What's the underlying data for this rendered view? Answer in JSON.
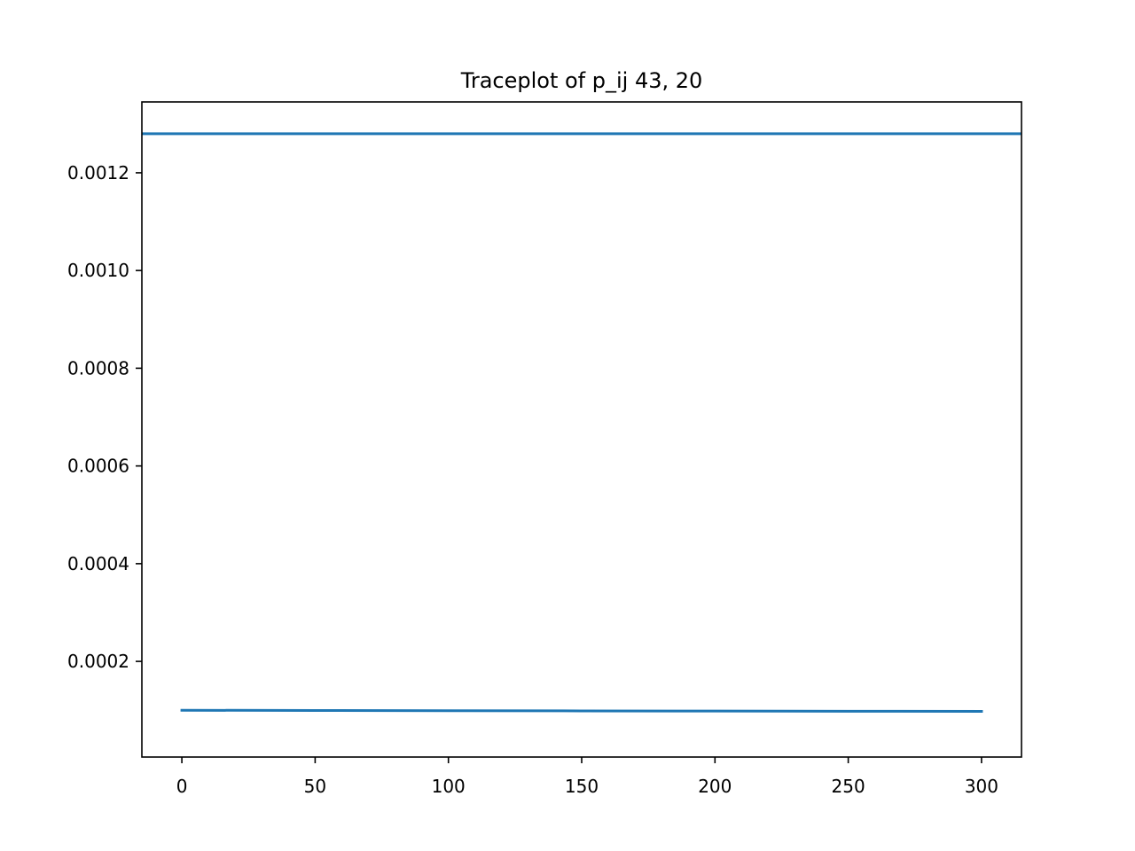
{
  "chart_data": {
    "type": "line",
    "title": "Traceplot of p_ij 43, 20",
    "xlabel": "",
    "ylabel": "",
    "xlim": [
      -15,
      315
    ],
    "ylim": [
      4.25e-06,
      0.001345
    ],
    "x_ticks": [
      0,
      50,
      100,
      150,
      200,
      250,
      300
    ],
    "x_tick_labels": [
      "0",
      "50",
      "100",
      "150",
      "200",
      "250",
      "300"
    ],
    "y_ticks": [
      0.0002,
      0.0004,
      0.0006,
      0.0008,
      0.001,
      0.0012
    ],
    "y_tick_labels": [
      "0.0002",
      "0.0004",
      "0.0006",
      "0.0008",
      "0.0010",
      "0.0012"
    ],
    "grid": false,
    "legend": "none",
    "series": [
      {
        "color": "#1f77b4",
        "points": [
          [
            -15,
            0.00128
          ],
          [
            315,
            0.00128
          ]
        ]
      },
      {
        "color": "#1f77b4",
        "points": [
          [
            0,
            0.0001
          ],
          [
            50,
            9.95e-05
          ],
          [
            100,
            9.9e-05
          ],
          [
            150,
            9.87e-05
          ],
          [
            200,
            9.83e-05
          ],
          [
            250,
            9.8e-05
          ],
          [
            300,
            9.77e-05
          ]
        ]
      }
    ]
  }
}
